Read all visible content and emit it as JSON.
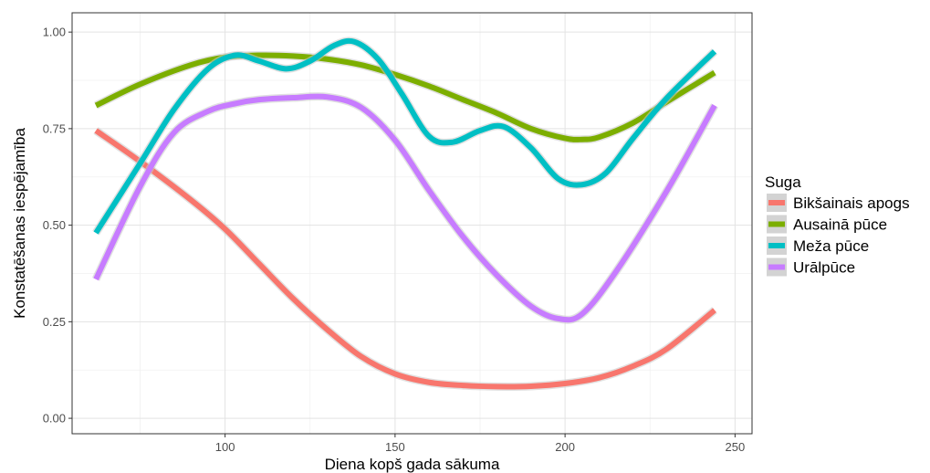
{
  "chart_data": {
    "type": "line",
    "xlabel": "Diena kopš gada sākuma",
    "ylabel": "Konstatēšanas iespējamība",
    "xlim": [
      55,
      255
    ],
    "ylim": [
      -0.04,
      1.05
    ],
    "xticks": [
      100,
      150,
      200,
      250
    ],
    "yticks": [
      0.0,
      0.25,
      0.5,
      0.75,
      1.0
    ],
    "xtick_labels": [
      "100",
      "150",
      "200",
      "250"
    ],
    "ytick_labels": [
      "0.00",
      "0.25",
      "0.50",
      "0.75",
      "1.00"
    ],
    "grid": true,
    "legend": {
      "title": "Suga",
      "position": "right"
    },
    "series": [
      {
        "name": "Bikšainais apogs",
        "color": "#F8766D",
        "x": [
          62,
          75,
          90,
          100,
          110,
          120,
          130,
          140,
          150,
          160,
          170,
          180,
          190,
          200,
          210,
          220,
          230,
          244
        ],
        "y": [
          0.745,
          0.665,
          0.565,
          0.49,
          0.4,
          0.31,
          0.23,
          0.16,
          0.115,
          0.093,
          0.085,
          0.082,
          0.083,
          0.09,
          0.105,
          0.135,
          0.18,
          0.28
        ]
      },
      {
        "name": "Ausainā pūce",
        "color": "#7CAE00",
        "x": [
          62,
          75,
          90,
          100,
          110,
          120,
          130,
          140,
          150,
          160,
          170,
          180,
          190,
          200,
          205,
          210,
          220,
          230,
          244
        ],
        "y": [
          0.81,
          0.865,
          0.915,
          0.935,
          0.94,
          0.938,
          0.93,
          0.915,
          0.89,
          0.86,
          0.825,
          0.79,
          0.75,
          0.725,
          0.722,
          0.728,
          0.765,
          0.82,
          0.895
        ]
      },
      {
        "name": "Meža pūce",
        "color": "#00BFC4",
        "x": [
          62,
          75,
          85,
          95,
          103,
          110,
          118,
          125,
          132,
          138,
          145,
          152,
          160,
          167,
          175,
          182,
          190,
          198,
          205,
          212,
          220,
          230,
          244
        ],
        "y": [
          0.48,
          0.66,
          0.8,
          0.905,
          0.94,
          0.925,
          0.905,
          0.925,
          0.965,
          0.975,
          0.93,
          0.84,
          0.73,
          0.715,
          0.745,
          0.755,
          0.7,
          0.62,
          0.605,
          0.635,
          0.725,
          0.83,
          0.95
        ]
      },
      {
        "name": "Urālpūce",
        "color": "#C77CFF",
        "x": [
          62,
          75,
          85,
          95,
          103,
          110,
          120,
          130,
          140,
          150,
          160,
          170,
          180,
          190,
          198,
          205,
          215,
          230,
          244
        ],
        "y": [
          0.36,
          0.6,
          0.74,
          0.795,
          0.815,
          0.825,
          0.83,
          0.832,
          0.805,
          0.72,
          0.59,
          0.47,
          0.37,
          0.29,
          0.258,
          0.27,
          0.38,
          0.59,
          0.81
        ]
      }
    ]
  }
}
